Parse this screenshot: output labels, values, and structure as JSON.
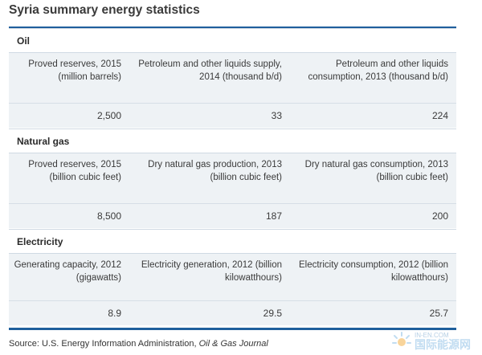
{
  "title": "Syria summary energy statistics",
  "sections": [
    {
      "name": "Oil",
      "labels": [
        "Proved reserves, 2015 (million barrels)",
        "Petroleum and other liquids supply, 2014 (thousand b/d)",
        "Petroleum and other liquids consumption, 2013 (thousand b/d)"
      ],
      "values": [
        "2,500",
        "33",
        "224"
      ]
    },
    {
      "name": "Natural gas",
      "labels": [
        "Proved reserves, 2015 (billion cubic feet)",
        "Dry natural gas production, 2013 (billion cubic feet)",
        "Dry natural gas consumption, 2013 (billion cubic feet)"
      ],
      "values": [
        "8,500",
        "187",
        "200"
      ]
    },
    {
      "name": "Electricity",
      "labels": [
        "Generating capacity, 2012 (gigawatts)",
        "Electricity generation, 2012 (billion kilowatthours)",
        "Electricity consumption, 2012 (billion kilowatthours)"
      ],
      "values": [
        "8.9",
        "29.5",
        "25.7"
      ]
    }
  ],
  "source": {
    "prefix": "Source: U.S. Energy Information Administration, ",
    "journal": "Oil & Gas Journal"
  },
  "watermark": {
    "en": "IN-EN.COM",
    "cn": "国际能源网"
  },
  "colors": {
    "accent": "#1f5f9c",
    "row_bg": "#eef2f5"
  }
}
